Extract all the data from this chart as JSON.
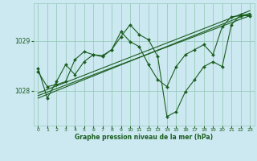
{
  "xlabel": "Graphe pression niveau de la mer (hPa)",
  "bg_color": "#cce8f0",
  "grid_color": "#99ccbb",
  "line_color": "#1a5e20",
  "xlim": [
    -0.5,
    23.5
  ],
  "ylim": [
    1027.3,
    1029.75
  ],
  "yticks": [
    1028,
    1029
  ],
  "xticks": [
    0,
    1,
    2,
    3,
    4,
    5,
    6,
    7,
    8,
    9,
    10,
    11,
    12,
    13,
    14,
    15,
    16,
    17,
    18,
    19,
    20,
    21,
    22,
    23
  ],
  "trend1_x": [
    0,
    23
  ],
  "trend1_y": [
    1027.95,
    1029.6
  ],
  "trend2_x": [
    0,
    23
  ],
  "trend2_y": [
    1027.85,
    1029.55
  ],
  "trend3_x": [
    0,
    23
  ],
  "trend3_y": [
    1027.9,
    1029.5
  ],
  "series1_x": [
    0,
    1,
    2,
    3,
    4,
    5,
    6,
    7,
    8,
    9,
    10,
    11,
    12,
    13,
    14,
    15,
    16,
    17,
    18,
    19,
    20,
    21,
    22,
    23
  ],
  "series1_y": [
    1028.45,
    1027.85,
    1028.18,
    1028.52,
    1028.32,
    1028.58,
    1028.72,
    1028.68,
    1028.82,
    1029.08,
    1029.32,
    1029.12,
    1029.02,
    1028.68,
    1027.48,
    1027.58,
    1027.98,
    1028.22,
    1028.48,
    1028.58,
    1028.48,
    1029.32,
    1029.52,
    1029.52
  ],
  "series2_x": [
    0,
    1,
    2,
    3,
    4,
    5,
    6,
    7,
    8,
    9,
    10,
    11,
    12,
    13,
    14,
    15,
    16,
    17,
    18,
    19,
    20,
    21,
    22,
    23
  ],
  "series2_y": [
    1028.38,
    1028.08,
    1028.12,
    1028.18,
    1028.62,
    1028.78,
    1028.72,
    1028.7,
    1028.82,
    1029.18,
    1028.98,
    1028.88,
    1028.52,
    1028.22,
    1028.08,
    1028.48,
    1028.72,
    1028.82,
    1028.92,
    1028.72,
    1029.28,
    1029.48,
    1029.5,
    1029.5
  ]
}
